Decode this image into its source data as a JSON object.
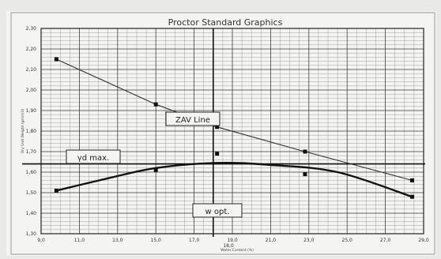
{
  "chart_data": {
    "type": "scatter",
    "title": "Proctor Standard Graphics",
    "xlabel": "Water Content (%)",
    "ylabel": "Dry Unit Weight (gr/cm3)",
    "xlim": [
      9.0,
      29.0
    ],
    "ylim": [
      1.3,
      2.3
    ],
    "x_ticks": [
      "9,0",
      "11,0",
      "13,0",
      "15,0",
      "17,0",
      "19,0",
      "21,0",
      "23,0",
      "25,0",
      "27,0",
      "29,0"
    ],
    "y_ticks": [
      "1,30",
      "1,40",
      "1,50",
      "1,60",
      "1,70",
      "1,80",
      "1,90",
      "2,00",
      "2,10",
      "2,20",
      "2,30"
    ],
    "grid": true,
    "series": [
      {
        "name": "ZAV Line",
        "type": "line",
        "points": [
          [
            9.8,
            2.15
          ],
          [
            15.0,
            1.93
          ],
          [
            18.2,
            1.82
          ],
          [
            22.8,
            1.7
          ],
          [
            28.4,
            1.56
          ]
        ]
      },
      {
        "name": "",
        "type": "curve",
        "points": [
          [
            9.8,
            1.51
          ],
          [
            12.5,
            1.57
          ],
          [
            15.0,
            1.62
          ],
          [
            18.2,
            1.645
          ],
          [
            21.0,
            1.635
          ],
          [
            24.5,
            1.6
          ],
          [
            28.4,
            1.48
          ]
        ]
      },
      {
        "name": "",
        "type": "scatter",
        "points": [
          [
            9.8,
            1.51
          ],
          [
            15.0,
            1.61
          ],
          [
            18.2,
            1.69
          ],
          [
            22.8,
            1.59
          ],
          [
            28.4,
            1.48
          ]
        ]
      }
    ],
    "max_dry_density": 1.64,
    "optimum_water_content": 18.0,
    "annotations": {
      "zav": "ZAV Line",
      "yd_max": "γd max.",
      "w_opt": "w opt.",
      "w_opt_value": "18,0"
    }
  }
}
